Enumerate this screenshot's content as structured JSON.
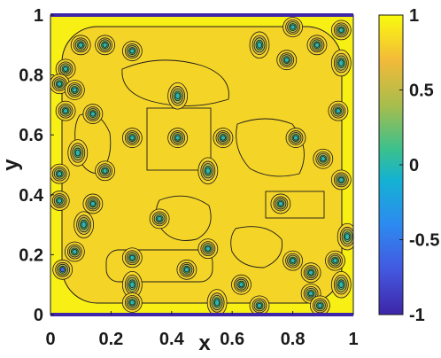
{
  "chart_data": {
    "type": "heatmap",
    "title": "",
    "xlabel": "x",
    "ylabel": "y",
    "xlim": [
      0,
      1
    ],
    "ylim": [
      0,
      1
    ],
    "x_ticks": [
      "0",
      "0.2",
      "0.4",
      "0.6",
      "0.8",
      "1"
    ],
    "y_ticks": [
      "0",
      "0.2",
      "0.4",
      "0.6",
      "0.8",
      "1"
    ],
    "colorbar": {
      "range": [
        -1,
        1
      ],
      "ticks": [
        "1",
        "0.5",
        "0",
        "-0.5",
        "-1"
      ],
      "colormap": "parula"
    },
    "background_value": 0.95,
    "plateau_value": 0.82,
    "features": [
      {
        "x": 0.42,
        "y": 0.73,
        "value": 0.0
      },
      {
        "x": 0.27,
        "y": 0.59,
        "value": 0.0
      },
      {
        "x": 0.42,
        "y": 0.59,
        "value": 0.0
      },
      {
        "x": 0.57,
        "y": 0.59,
        "value": 0.0
      },
      {
        "x": 0.81,
        "y": 0.59,
        "value": 0.0
      },
      {
        "x": 0.52,
        "y": 0.48,
        "value": 0.0
      },
      {
        "x": 0.18,
        "y": 0.48,
        "value": 0.0
      },
      {
        "x": 0.36,
        "y": 0.32,
        "value": 0.0
      },
      {
        "x": 0.76,
        "y": 0.37,
        "value": 0.0
      },
      {
        "x": 0.14,
        "y": 0.37,
        "value": 0.0
      },
      {
        "x": 0.11,
        "y": 0.3,
        "value": 0.0
      },
      {
        "x": 0.14,
        "y": 0.67,
        "value": 0.0
      },
      {
        "x": 0.27,
        "y": 0.88,
        "value": 0.0
      },
      {
        "x": 0.18,
        "y": 0.9,
        "value": 0.0
      },
      {
        "x": 0.1,
        "y": 0.9,
        "value": 0.0
      },
      {
        "x": 0.69,
        "y": 0.9,
        "value": 0.0
      },
      {
        "x": 0.78,
        "y": 0.85,
        "value": 0.0
      },
      {
        "x": 0.8,
        "y": 0.96,
        "value": 0.0
      },
      {
        "x": 0.88,
        "y": 0.9,
        "value": 0.0
      },
      {
        "x": 0.96,
        "y": 0.95,
        "value": 0.0
      },
      {
        "x": 0.96,
        "y": 0.84,
        "value": 0.0
      },
      {
        "x": 0.05,
        "y": 0.82,
        "value": 0.0
      },
      {
        "x": 0.03,
        "y": 0.77,
        "value": 0.0
      },
      {
        "x": 0.08,
        "y": 0.75,
        "value": 0.0
      },
      {
        "x": 0.05,
        "y": 0.68,
        "value": 0.0
      },
      {
        "x": 0.09,
        "y": 0.54,
        "value": 0.0
      },
      {
        "x": 0.03,
        "y": 0.47,
        "value": 0.0
      },
      {
        "x": 0.03,
        "y": 0.38,
        "value": 0.0
      },
      {
        "x": 0.95,
        "y": 0.68,
        "value": 0.0
      },
      {
        "x": 0.96,
        "y": 0.45,
        "value": 0.0
      },
      {
        "x": 0.98,
        "y": 0.26,
        "value": 0.0
      },
      {
        "x": 0.9,
        "y": 0.52,
        "value": 0.0
      },
      {
        "x": 0.27,
        "y": 0.19,
        "value": 0.0
      },
      {
        "x": 0.08,
        "y": 0.21,
        "value": 0.0
      },
      {
        "x": 0.04,
        "y": 0.15,
        "value": -0.6
      },
      {
        "x": 0.27,
        "y": 0.1,
        "value": 0.0
      },
      {
        "x": 0.27,
        "y": 0.04,
        "value": 0.0
      },
      {
        "x": 0.45,
        "y": 0.15,
        "value": 0.0
      },
      {
        "x": 0.52,
        "y": 0.22,
        "value": 0.0
      },
      {
        "x": 0.63,
        "y": 0.1,
        "value": 0.0
      },
      {
        "x": 0.55,
        "y": 0.04,
        "value": 0.0
      },
      {
        "x": 0.69,
        "y": 0.03,
        "value": 0.0
      },
      {
        "x": 0.8,
        "y": 0.18,
        "value": 0.0
      },
      {
        "x": 0.86,
        "y": 0.14,
        "value": 0.0
      },
      {
        "x": 0.94,
        "y": 0.18,
        "value": 0.0
      },
      {
        "x": 0.96,
        "y": 0.1,
        "value": 0.0
      },
      {
        "x": 0.86,
        "y": 0.07,
        "value": 0.0
      },
      {
        "x": 0.89,
        "y": 0.03,
        "value": 0.0
      }
    ]
  }
}
